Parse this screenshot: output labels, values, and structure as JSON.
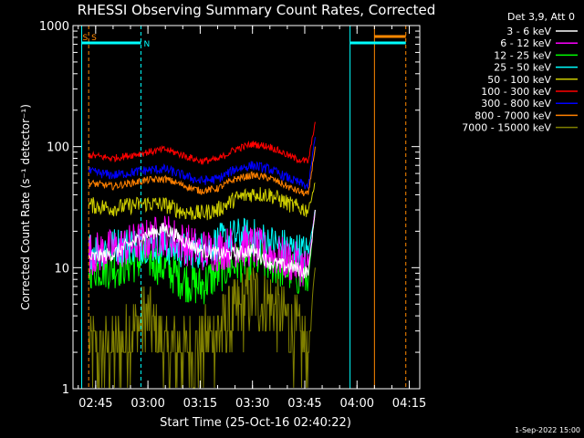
{
  "chart_data": {
    "type": "line",
    "title": "RHESSI Observing Summary Count Rates, Corrected",
    "xlabel": "Start Time (25-Oct-16 02:40:22)",
    "ylabel": "Corrected Count Rate (s⁻¹ detector⁻¹)",
    "yscale": "log",
    "ylim": [
      1,
      1000
    ],
    "xlim_minutes_after_0240": [
      -1.5,
      98
    ],
    "x_ticks": [
      "02:45",
      "03:00",
      "03:15",
      "03:30",
      "03:45",
      "04:00",
      "04:15"
    ],
    "y_ticks": [
      "1",
      "10",
      "100",
      "1000"
    ],
    "grid": false,
    "legend_position": "right",
    "legend_header": "Det 3,9, Att 0",
    "footer": "1-Sep-2022 15:00",
    "flag_labels": [
      "S",
      "S",
      "N"
    ],
    "vertical_markers": [
      {
        "time": "02:41",
        "color": "#00ffff",
        "style": "solid"
      },
      {
        "time": "02:43",
        "color": "#ff8800",
        "style": "dashed"
      },
      {
        "time": "02:58",
        "color": "#00ffff",
        "style": "dashed"
      },
      {
        "time": "03:58",
        "color": "#00ffff",
        "style": "solid"
      },
      {
        "time": "04:05",
        "color": "#ff8800",
        "style": "solid"
      },
      {
        "time": "04:14",
        "color": "#ff8800",
        "style": "dashed"
      }
    ],
    "flag_bars": [
      {
        "label": "S",
        "color": "#00ffff",
        "start": "02:41",
        "end": "02:58"
      },
      {
        "label": "N",
        "color": "#00ffff",
        "start": "03:58",
        "end": "04:14"
      },
      {
        "label": "",
        "color": "#ff8800",
        "start": "04:05",
        "end": "04:14"
      }
    ],
    "series": [
      {
        "name": "3 - 6 keV",
        "color": "#ffffff",
        "points": [
          [
            3,
            12
          ],
          [
            10,
            13
          ],
          [
            20,
            19
          ],
          [
            25,
            21
          ],
          [
            30,
            17
          ],
          [
            35,
            14
          ],
          [
            40,
            13
          ],
          [
            45,
            13
          ],
          [
            50,
            14
          ],
          [
            55,
            11
          ],
          [
            62,
            10
          ],
          [
            66,
            9
          ],
          [
            68,
            30
          ]
        ]
      },
      {
        "name": "6 - 12 keV",
        "color": "#ff00ff",
        "points": [
          [
            3,
            13
          ],
          [
            10,
            14
          ],
          [
            20,
            17
          ],
          [
            25,
            19
          ],
          [
            30,
            16
          ],
          [
            35,
            14
          ],
          [
            40,
            14
          ],
          [
            45,
            15
          ],
          [
            50,
            15
          ],
          [
            55,
            13
          ],
          [
            62,
            11
          ],
          [
            66,
            10
          ],
          [
            68,
            30
          ]
        ]
      },
      {
        "name": "12 - 25 keV",
        "color": "#00ff00",
        "points": [
          [
            3,
            10
          ],
          [
            10,
            10
          ],
          [
            20,
            12
          ],
          [
            25,
            10
          ],
          [
            30,
            8
          ],
          [
            35,
            7
          ],
          [
            40,
            9
          ],
          [
            45,
            11
          ],
          [
            50,
            12
          ],
          [
            55,
            11
          ],
          [
            62,
            9
          ],
          [
            66,
            8
          ],
          [
            68,
            30
          ]
        ]
      },
      {
        "name": "25 - 50 keV",
        "color": "#00ffff",
        "points": [
          [
            3,
            14
          ],
          [
            10,
            15
          ],
          [
            20,
            16
          ],
          [
            25,
            15
          ],
          [
            30,
            14
          ],
          [
            35,
            14
          ],
          [
            40,
            16
          ],
          [
            45,
            18
          ],
          [
            50,
            18
          ],
          [
            55,
            16
          ],
          [
            62,
            14
          ],
          [
            66,
            13
          ],
          [
            68,
            30
          ]
        ]
      },
      {
        "name": "50 - 100 keV",
        "color": "#cccc00",
        "points": [
          [
            3,
            33
          ],
          [
            10,
            31
          ],
          [
            20,
            34
          ],
          [
            25,
            33
          ],
          [
            30,
            29
          ],
          [
            35,
            28
          ],
          [
            40,
            30
          ],
          [
            45,
            37
          ],
          [
            50,
            41
          ],
          [
            55,
            40
          ],
          [
            62,
            32
          ],
          [
            66,
            30
          ],
          [
            68,
            50
          ]
        ]
      },
      {
        "name": "100 - 300 keV",
        "color": "#ff0000",
        "points": [
          [
            3,
            85
          ],
          [
            10,
            80
          ],
          [
            20,
            90
          ],
          [
            25,
            95
          ],
          [
            30,
            85
          ],
          [
            35,
            76
          ],
          [
            40,
            78
          ],
          [
            45,
            95
          ],
          [
            50,
            105
          ],
          [
            55,
            100
          ],
          [
            62,
            80
          ],
          [
            66,
            75
          ],
          [
            68,
            160
          ]
        ]
      },
      {
        "name": "300 - 800 keV",
        "color": "#0000ff",
        "points": [
          [
            3,
            62
          ],
          [
            10,
            58
          ],
          [
            20,
            64
          ],
          [
            25,
            65
          ],
          [
            30,
            58
          ],
          [
            35,
            52
          ],
          [
            40,
            54
          ],
          [
            45,
            65
          ],
          [
            50,
            70
          ],
          [
            55,
            65
          ],
          [
            62,
            52
          ],
          [
            66,
            47
          ],
          [
            68,
            120
          ]
        ]
      },
      {
        "name": "800 - 7000 keV",
        "color": "#ff8000",
        "points": [
          [
            3,
            50
          ],
          [
            10,
            47
          ],
          [
            20,
            53
          ],
          [
            25,
            54
          ],
          [
            30,
            48
          ],
          [
            35,
            43
          ],
          [
            40,
            45
          ],
          [
            45,
            54
          ],
          [
            50,
            58
          ],
          [
            55,
            55
          ],
          [
            62,
            44
          ],
          [
            66,
            40
          ],
          [
            68,
            100
          ]
        ]
      },
      {
        "name": "7000 - 15000 keV",
        "color": "#808000",
        "points": [
          [
            3,
            2
          ],
          [
            10,
            2
          ],
          [
            20,
            4
          ],
          [
            25,
            2
          ],
          [
            30,
            2
          ],
          [
            35,
            2
          ],
          [
            40,
            3
          ],
          [
            45,
            4
          ],
          [
            50,
            6
          ],
          [
            55,
            5
          ],
          [
            62,
            3
          ],
          [
            66,
            2
          ],
          [
            68,
            10
          ]
        ]
      }
    ]
  }
}
